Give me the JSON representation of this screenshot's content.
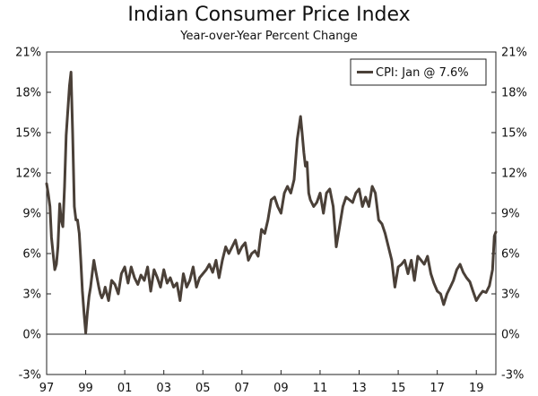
{
  "chart_data": {
    "type": "line",
    "title": "Indian Consumer Price Index",
    "subtitle": "Year-over-Year Percent Change",
    "xlabel": "",
    "ylabel": "",
    "ylim": [
      -3,
      21
    ],
    "xlim": [
      1997.0,
      2020.0
    ],
    "y_ticks": [
      -3,
      0,
      3,
      6,
      9,
      12,
      15,
      18,
      21
    ],
    "y_tick_labels": [
      "-3%",
      "0%",
      "3%",
      "6%",
      "9%",
      "12%",
      "15%",
      "18%",
      "21%"
    ],
    "x_ticks": [
      1997,
      1999,
      2001,
      2003,
      2005,
      2007,
      2009,
      2011,
      2013,
      2015,
      2017,
      2019
    ],
    "x_tick_labels": [
      "97",
      "99",
      "01",
      "03",
      "05",
      "07",
      "09",
      "11",
      "13",
      "15",
      "17",
      "19"
    ],
    "grid": false,
    "legend": {
      "position": "top-right",
      "label": "CPI: Jan @ 7.6%"
    },
    "line_color": "#4a4038",
    "series": [
      {
        "name": "CPI",
        "x": [
          1997.0,
          1997.08,
          1997.17,
          1997.25,
          1997.33,
          1997.42,
          1997.5,
          1997.58,
          1997.67,
          1997.75,
          1997.83,
          1997.92,
          1998.0,
          1998.08,
          1998.17,
          1998.25,
          1998.33,
          1998.42,
          1998.5,
          1998.58,
          1998.67,
          1998.75,
          1998.83,
          1998.92,
          1999.0,
          1999.08,
          1999.17,
          1999.25,
          1999.33,
          1999.42,
          1999.5,
          1999.58,
          1999.67,
          1999.75,
          1999.83,
          1999.92,
          2000.0,
          2000.17,
          2000.33,
          2000.5,
          2000.67,
          2000.83,
          2001.0,
          2001.17,
          2001.33,
          2001.5,
          2001.67,
          2001.83,
          2002.0,
          2002.17,
          2002.33,
          2002.5,
          2002.67,
          2002.83,
          2003.0,
          2003.17,
          2003.33,
          2003.5,
          2003.67,
          2003.83,
          2004.0,
          2004.17,
          2004.33,
          2004.5,
          2004.67,
          2004.83,
          2005.0,
          2005.17,
          2005.33,
          2005.5,
          2005.67,
          2005.83,
          2006.0,
          2006.17,
          2006.33,
          2006.5,
          2006.67,
          2006.83,
          2007.0,
          2007.17,
          2007.33,
          2007.5,
          2007.67,
          2007.83,
          2008.0,
          2008.17,
          2008.33,
          2008.5,
          2008.67,
          2008.83,
          2009.0,
          2009.17,
          2009.33,
          2009.5,
          2009.67,
          2009.83,
          2010.0,
          2010.08,
          2010.17,
          2010.25,
          2010.33,
          2010.42,
          2010.5,
          2010.67,
          2010.83,
          2011.0,
          2011.17,
          2011.33,
          2011.5,
          2011.67,
          2011.83,
          2012.0,
          2012.17,
          2012.33,
          2012.5,
          2012.67,
          2012.83,
          2013.0,
          2013.17,
          2013.33,
          2013.5,
          2013.67,
          2013.83,
          2014.0,
          2014.17,
          2014.33,
          2014.5,
          2014.67,
          2014.83,
          2015.0,
          2015.17,
          2015.33,
          2015.5,
          2015.67,
          2015.83,
          2016.0,
          2016.17,
          2016.33,
          2016.5,
          2016.67,
          2016.83,
          2017.0,
          2017.17,
          2017.33,
          2017.5,
          2017.67,
          2017.83,
          2018.0,
          2018.17,
          2018.33,
          2018.5,
          2018.67,
          2018.83,
          2019.0,
          2019.17,
          2019.33,
          2019.5,
          2019.67,
          2019.83,
          2019.92,
          2020.0
        ],
        "values": [
          11.2,
          10.5,
          9.5,
          7.2,
          6.0,
          4.8,
          5.2,
          6.5,
          9.7,
          8.5,
          8.0,
          11.0,
          14.8,
          16.5,
          18.5,
          19.5,
          15.0,
          9.5,
          8.5,
          8.5,
          7.5,
          5.5,
          3.2,
          1.5,
          0.1,
          1.5,
          2.8,
          3.5,
          4.5,
          5.5,
          4.8,
          4.2,
          3.5,
          3.0,
          2.7,
          3.0,
          3.5,
          2.5,
          4.0,
          3.7,
          3.0,
          4.5,
          5.0,
          3.8,
          5.0,
          4.2,
          3.7,
          4.4,
          4.0,
          5.0,
          3.2,
          4.8,
          4.2,
          3.5,
          4.8,
          3.8,
          4.2,
          3.5,
          3.8,
          2.5,
          4.5,
          3.5,
          4.0,
          5.0,
          3.5,
          4.2,
          4.5,
          4.8,
          5.2,
          4.6,
          5.5,
          4.2,
          5.5,
          6.5,
          6.0,
          6.5,
          7.0,
          6.0,
          6.5,
          6.8,
          5.5,
          6.0,
          6.2,
          5.8,
          7.8,
          7.5,
          8.5,
          10.0,
          10.2,
          9.5,
          9.0,
          10.5,
          11.0,
          10.5,
          11.5,
          14.5,
          16.2,
          15.0,
          13.5,
          12.5,
          12.8,
          10.5,
          10.0,
          9.5,
          9.8,
          10.5,
          9.0,
          10.5,
          10.8,
          9.5,
          6.5,
          8.0,
          9.5,
          10.2,
          10.0,
          9.8,
          10.5,
          10.8,
          9.5,
          10.2,
          9.5,
          11.0,
          10.5,
          8.5,
          8.2,
          7.5,
          6.5,
          5.5,
          3.5,
          5.0,
          5.2,
          5.5,
          4.5,
          5.5,
          4.0,
          5.8,
          5.5,
          5.2,
          5.8,
          4.5,
          3.8,
          3.2,
          3.0,
          2.2,
          3.0,
          3.5,
          4.0,
          4.8,
          5.2,
          4.6,
          4.2,
          3.9,
          3.2,
          2.5,
          2.9,
          3.2,
          3.1,
          3.6,
          4.8,
          7.3,
          7.6
        ]
      }
    ]
  }
}
